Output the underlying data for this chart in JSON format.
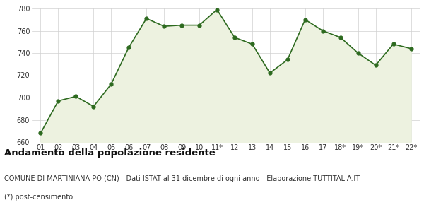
{
  "x_labels": [
    "01",
    "02",
    "03",
    "04",
    "05",
    "06",
    "07",
    "08",
    "09",
    "10",
    "11*",
    "12",
    "13",
    "14",
    "15",
    "16",
    "17",
    "18*",
    "19*",
    "20*",
    "21*",
    "22*"
  ],
  "y_values": [
    668,
    697,
    701,
    692,
    712,
    745,
    771,
    764,
    765,
    765,
    779,
    754,
    748,
    722,
    734,
    770,
    760,
    754,
    740,
    729,
    748,
    744
  ],
  "line_color": "#2d6a1f",
  "fill_color": "#edf2e0",
  "marker_color": "#2d6a1f",
  "bg_color": "#ffffff",
  "plot_bg_color": "#ffffff",
  "grid_color": "#d0d0d0",
  "ylim": [
    660,
    780
  ],
  "yticks": [
    660,
    680,
    700,
    720,
    740,
    760,
    780
  ],
  "title": "Andamento della popolazione residente",
  "subtitle": "COMUNE DI MARTINIANA PO (CN) - Dati ISTAT al 31 dicembre di ogni anno - Elaborazione TUTTITALIA.IT",
  "footnote": "(*) post-censimento",
  "title_fontsize": 9.5,
  "subtitle_fontsize": 7.0,
  "footnote_fontsize": 7.0,
  "axis_fontsize": 7.0
}
